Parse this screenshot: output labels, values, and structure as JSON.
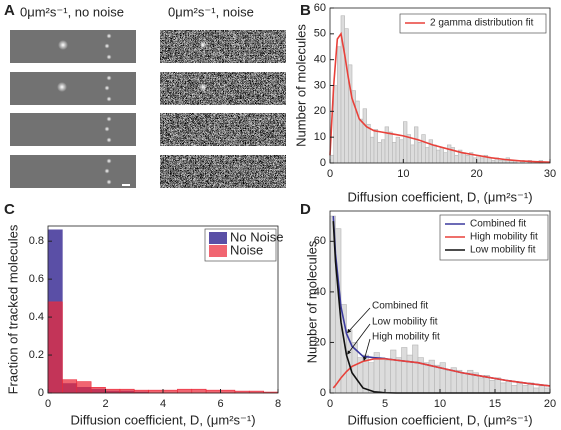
{
  "image_panel": {
    "panel_label": "A",
    "headers": [
      "0μm²s⁻¹, no noise",
      "0μm²s⁻¹, noise"
    ]
  },
  "chart_data": [
    {
      "type": "histogram",
      "panel_label": "B",
      "xlabel": "Diffusion coefficient, D, (μm²s⁻¹)",
      "ylabel": "Number of molecules",
      "xlim": [
        0,
        30
      ],
      "ylim": [
        0,
        60
      ],
      "xticks": [
        0,
        10,
        20,
        30
      ],
      "yticks": [
        0,
        10,
        20,
        30,
        40,
        50,
        60
      ],
      "legend": "upper right",
      "bins": [
        0,
        0.5,
        1,
        1.5,
        2,
        2.5,
        3,
        3.5,
        4,
        4.5,
        5,
        5.5,
        6,
        6.5,
        7,
        7.5,
        8,
        8.5,
        9,
        9.5,
        10,
        10.5,
        11,
        11.5,
        12,
        12.5,
        13,
        13.5,
        14,
        14.5,
        15,
        15.5,
        16,
        16.5,
        17,
        17.5,
        18,
        18.5,
        19,
        19.5,
        20,
        20.5,
        21,
        21.5,
        22,
        22.5,
        23,
        23.5,
        24,
        24.5,
        25,
        25.5,
        26,
        26.5,
        27,
        27.5,
        28,
        28.5,
        29,
        29.5,
        30
      ],
      "values": [
        3,
        30,
        45,
        57,
        52,
        38,
        28,
        24,
        17,
        21,
        15,
        10,
        13,
        8,
        9,
        14,
        12,
        8,
        10,
        9,
        16,
        11,
        7,
        14,
        8,
        11,
        6,
        9,
        7,
        5,
        6,
        4,
        7,
        6,
        3,
        5,
        4,
        3,
        4,
        2,
        3,
        2,
        3,
        2,
        1,
        2,
        1,
        1,
        2,
        1,
        1,
        0,
        1,
        0,
        1,
        0,
        0,
        1,
        0,
        0
      ],
      "color": "#dcdcdc",
      "lines": [
        {
          "name": "2 gamma distribution fit",
          "color": "#e8413a",
          "x": [
            0,
            0.5,
            1,
            1.5,
            2,
            2.5,
            3,
            4,
            5,
            6,
            7,
            8,
            9,
            10,
            12,
            14,
            16,
            18,
            20,
            22,
            24,
            26,
            28,
            30
          ],
          "values": [
            3,
            30,
            48,
            50,
            42,
            33,
            25,
            17,
            14,
            12.5,
            12,
            11.5,
            11,
            10.5,
            9,
            7,
            5.5,
            4,
            3,
            2,
            1.3,
            0.8,
            0.5,
            0.3
          ]
        }
      ]
    },
    {
      "type": "histogram",
      "panel_label": "C",
      "xlabel": "Diffusion coefficient, D, (μm²s⁻¹)",
      "ylabel": "Fraction of tracked molecules",
      "xlim": [
        0,
        8
      ],
      "ylim": [
        0,
        0.88
      ],
      "xticks": [
        0,
        2,
        4,
        6,
        8
      ],
      "yticks": [
        0,
        0.2,
        0.4,
        0.6,
        0.8
      ],
      "legend": "upper right",
      "bins": [
        0,
        0.5,
        1,
        1.5,
        2,
        2.5,
        3,
        3.5,
        4,
        4.5,
        5,
        5.5,
        6,
        6.5,
        7,
        7.5,
        8
      ],
      "series": [
        {
          "name": "No Noise",
          "color": "#5a4fa6",
          "opacity": 1,
          "values": [
            0.86,
            0.05,
            0.03,
            0.02,
            0.01,
            0.01,
            0.005,
            0,
            0,
            0,
            0,
            0,
            0,
            0,
            0,
            0
          ]
        },
        {
          "name": "Noise",
          "color": "#ec2a3a",
          "opacity": 0.72,
          "values": [
            0.48,
            0.07,
            0.06,
            0.03,
            0.02,
            0.02,
            0.015,
            0.015,
            0.015,
            0.02,
            0.02,
            0.015,
            0.015,
            0.01,
            0.01,
            0.005
          ]
        }
      ]
    },
    {
      "type": "histogram",
      "panel_label": "D",
      "xlabel": "Diffusion coefficient, D, (μm²s⁻¹)",
      "ylabel": "Number of molecules",
      "xlim": [
        0,
        20
      ],
      "ylim": [
        0,
        72
      ],
      "xticks": [
        0,
        5,
        10,
        15,
        20
      ],
      "yticks": [
        0,
        20,
        40,
        60
      ],
      "legend": "upper right",
      "bins": [
        0,
        0.5,
        1,
        1.5,
        2,
        2.5,
        3,
        3.5,
        4,
        4.5,
        5,
        5.5,
        6,
        6.5,
        7,
        7.5,
        8,
        8.5,
        9,
        9.5,
        10,
        10.5,
        11,
        11.5,
        12,
        12.5,
        13,
        13.5,
        14,
        14.5,
        15,
        15.5,
        16,
        16.5,
        17,
        17.5,
        18,
        18.5,
        19,
        19.5,
        20
      ],
      "values": [
        70,
        65,
        35,
        25,
        20,
        14,
        15,
        12,
        16,
        14,
        13,
        17,
        14,
        18,
        15,
        19,
        14,
        12,
        13,
        11,
        12,
        9,
        10,
        9,
        8,
        9,
        8,
        6,
        7,
        5,
        6,
        4,
        5,
        3,
        4,
        3,
        4,
        2,
        3,
        2
      ],
      "color": "#dcdcdc",
      "lines": [
        {
          "name": "Combined fit",
          "color": "#3b3a9e",
          "x": [
            0.3,
            0.5,
            1,
            1.5,
            2,
            3,
            4,
            5,
            6,
            7,
            8,
            10,
            12,
            14,
            16,
            18,
            20
          ],
          "values": [
            70,
            55,
            34,
            23.5,
            18.5,
            14.5,
            14,
            13.6,
            13,
            12.5,
            12,
            10,
            8,
            6.5,
            5,
            3.8,
            2.8
          ]
        },
        {
          "name": "High mobility fit",
          "color": "#e8413a",
          "x": [
            0.3,
            0.5,
            1,
            1.5,
            2,
            3,
            4,
            5,
            6,
            7,
            8,
            10,
            12,
            14,
            16,
            18,
            20
          ],
          "values": [
            2,
            3,
            6,
            8.5,
            10.5,
            12.5,
            13.5,
            13.5,
            13,
            12.5,
            12,
            10,
            8,
            6.5,
            5,
            3.8,
            2.8
          ]
        },
        {
          "name": "Low mobility fit",
          "color": "#111111",
          "x": [
            0.3,
            0.5,
            1,
            1.5,
            2,
            3,
            4,
            5,
            6,
            7,
            8,
            10,
            12,
            14,
            16,
            18,
            20
          ],
          "values": [
            68,
            52,
            28,
            15,
            8,
            2,
            0.5,
            0.1,
            0,
            0,
            0,
            0,
            0,
            0,
            0,
            0,
            0
          ]
        }
      ],
      "annotations": [
        "Combined fit",
        "Low mobility fit",
        "High mobility fit"
      ]
    }
  ]
}
